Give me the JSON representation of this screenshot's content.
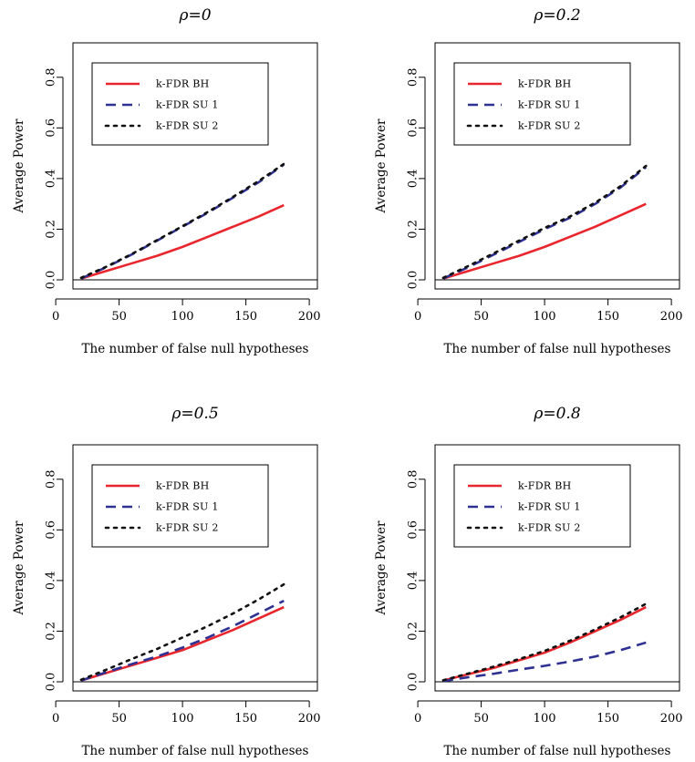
{
  "chart_data": [
    {
      "type": "line",
      "title": "ρ=0",
      "xlabel": "The number of false null hypotheses",
      "ylabel": "Average Power",
      "xlim": [
        0,
        200
      ],
      "ylim": [
        0,
        0.9
      ],
      "xticks": [
        "0",
        "50",
        "100",
        "150",
        "200"
      ],
      "yticks": [
        "0.0",
        "0.2",
        "0.4",
        "0.6",
        "0.8"
      ],
      "hline": 0,
      "legend_position": "top-left",
      "x": [
        20,
        40,
        60,
        80,
        100,
        120,
        140,
        160,
        180
      ],
      "series": [
        {
          "name": "k-FDR BH",
          "color": "#e8262d",
          "style": "solid",
          "values": [
            0.005,
            0.035,
            0.065,
            0.095,
            0.13,
            0.17,
            0.21,
            0.25,
            0.295
          ]
        },
        {
          "name": "k-FDR SU 1",
          "color": "#2e3192",
          "style": "dashed",
          "values": [
            0.005,
            0.05,
            0.1,
            0.155,
            0.21,
            0.265,
            0.325,
            0.385,
            0.455
          ]
        },
        {
          "name": "k-FDR SU 2",
          "color": "#111111",
          "style": "dotted",
          "values": [
            0.008,
            0.052,
            0.102,
            0.157,
            0.212,
            0.268,
            0.328,
            0.39,
            0.458
          ]
        }
      ]
    },
    {
      "type": "line",
      "title": "ρ=0.2",
      "xlabel": "The number of false null hypotheses",
      "ylabel": "Average Power",
      "xlim": [
        0,
        200
      ],
      "ylim": [
        0,
        0.9
      ],
      "xticks": [
        "0",
        "50",
        "100",
        "150",
        "200"
      ],
      "yticks": [
        "0.0",
        "0.2",
        "0.4",
        "0.6",
        "0.8"
      ],
      "hline": 0,
      "legend_position": "top-left",
      "x": [
        20,
        40,
        60,
        80,
        100,
        120,
        140,
        160,
        180
      ],
      "series": [
        {
          "name": "k-FDR BH",
          "color": "#e8262d",
          "style": "solid",
          "values": [
            0.005,
            0.035,
            0.065,
            0.095,
            0.13,
            0.17,
            0.21,
            0.255,
            0.3
          ]
        },
        {
          "name": "k-FDR SU 1",
          "color": "#2e3192",
          "style": "dashed",
          "values": [
            0.005,
            0.05,
            0.1,
            0.15,
            0.2,
            0.245,
            0.3,
            0.365,
            0.445
          ]
        },
        {
          "name": "k-FDR SU 2",
          "color": "#111111",
          "style": "dotted",
          "values": [
            0.008,
            0.055,
            0.105,
            0.155,
            0.205,
            0.25,
            0.305,
            0.37,
            0.45
          ]
        }
      ]
    },
    {
      "type": "line",
      "title": "ρ=0.5",
      "xlabel": "The number of false null hypotheses",
      "ylabel": "Average Power",
      "xlim": [
        0,
        200
      ],
      "ylim": [
        0,
        0.9
      ],
      "xticks": [
        "0",
        "50",
        "100",
        "150",
        "200"
      ],
      "yticks": [
        "0.0",
        "0.2",
        "0.4",
        "0.6",
        "0.8"
      ],
      "hline": 0,
      "legend_position": "top-left",
      "x": [
        20,
        40,
        60,
        80,
        100,
        120,
        140,
        160,
        180
      ],
      "series": [
        {
          "name": "k-FDR BH",
          "color": "#e8262d",
          "style": "solid",
          "values": [
            0.005,
            0.035,
            0.065,
            0.095,
            0.125,
            0.165,
            0.205,
            0.25,
            0.295
          ]
        },
        {
          "name": "k-FDR SU 1",
          "color": "#2e3192",
          "style": "dashed",
          "values": [
            0.005,
            0.038,
            0.07,
            0.1,
            0.135,
            0.175,
            0.22,
            0.27,
            0.32
          ]
        },
        {
          "name": "k-FDR SU 2",
          "color": "#111111",
          "style": "dotted",
          "values": [
            0.008,
            0.048,
            0.09,
            0.13,
            0.175,
            0.22,
            0.27,
            0.325,
            0.385
          ]
        }
      ]
    },
    {
      "type": "line",
      "title": "ρ=0.8",
      "xlabel": "The number of false null hypotheses",
      "ylabel": "Average Power",
      "xlim": [
        0,
        200
      ],
      "ylim": [
        0,
        0.9
      ],
      "xticks": [
        "0",
        "50",
        "100",
        "150",
        "200"
      ],
      "yticks": [
        "0.0",
        "0.2",
        "0.4",
        "0.6",
        "0.8"
      ],
      "hline": 0,
      "legend_position": "top-left",
      "x": [
        20,
        40,
        60,
        80,
        100,
        120,
        140,
        160,
        180
      ],
      "series": [
        {
          "name": "k-FDR BH",
          "color": "#e8262d",
          "style": "solid",
          "values": [
            0.005,
            0.03,
            0.055,
            0.085,
            0.115,
            0.155,
            0.2,
            0.245,
            0.295
          ]
        },
        {
          "name": "k-FDR SU 1",
          "color": "#2e3192",
          "style": "dashed",
          "values": [
            0.003,
            0.018,
            0.032,
            0.048,
            0.063,
            0.08,
            0.1,
            0.125,
            0.155
          ]
        },
        {
          "name": "k-FDR SU 2",
          "color": "#111111",
          "style": "dotted",
          "values": [
            0.006,
            0.033,
            0.06,
            0.09,
            0.122,
            0.162,
            0.207,
            0.255,
            0.308
          ]
        }
      ]
    }
  ]
}
